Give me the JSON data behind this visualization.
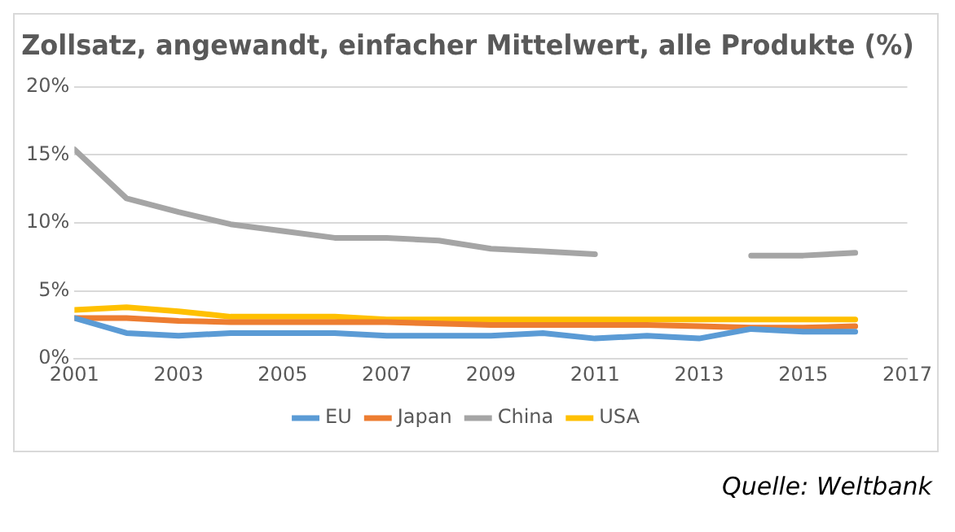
{
  "chart_data": {
    "type": "line",
    "title": "Zollsatz, angewandt, einfacher Mittelwert, alle Produkte (%)",
    "x": [
      2001,
      2002,
      2003,
      2004,
      2005,
      2006,
      2007,
      2008,
      2009,
      2010,
      2011,
      2012,
      2013,
      2014,
      2015,
      2016
    ],
    "series": [
      {
        "name": "EU",
        "color": "#5b9bd5",
        "values": [
          3.0,
          1.9,
          1.7,
          1.9,
          1.9,
          1.9,
          1.7,
          1.7,
          1.7,
          1.9,
          1.5,
          1.7,
          1.5,
          2.2,
          2.0,
          2.0
        ]
      },
      {
        "name": "Japan",
        "color": "#ed7d31",
        "values": [
          3.0,
          3.0,
          2.8,
          2.7,
          2.7,
          2.7,
          2.7,
          2.6,
          2.5,
          2.5,
          2.5,
          2.5,
          2.4,
          2.3,
          2.3,
          2.4
        ]
      },
      {
        "name": "China",
        "color": "#a5a5a5",
        "values": [
          15.4,
          11.8,
          10.8,
          9.9,
          9.4,
          8.9,
          8.9,
          8.7,
          8.1,
          7.9,
          7.7,
          null,
          null,
          7.6,
          7.6,
          7.8
        ]
      },
      {
        "name": "USA",
        "color": "#ffc000",
        "values": [
          3.6,
          3.8,
          3.5,
          3.1,
          3.1,
          3.1,
          2.9,
          2.9,
          2.9,
          2.9,
          2.9,
          2.9,
          2.9,
          2.9,
          2.9,
          2.9
        ]
      }
    ],
    "xlim": [
      2001,
      2017
    ],
    "xticks": [
      2001,
      2003,
      2005,
      2007,
      2009,
      2011,
      2013,
      2015,
      2017
    ],
    "ylim": [
      0,
      20
    ],
    "yticks": [
      {
        "value": 0,
        "label": "0%"
      },
      {
        "value": 5,
        "label": "5%"
      },
      {
        "value": 10,
        "label": "10%"
      },
      {
        "value": 15,
        "label": "15%"
      },
      {
        "value": 20,
        "label": "20%"
      }
    ],
    "grid": "y",
    "legend": "bottom",
    "marker": "none",
    "line_style": "solid",
    "annotations": [
      "Quelle: Weltbank"
    ]
  }
}
